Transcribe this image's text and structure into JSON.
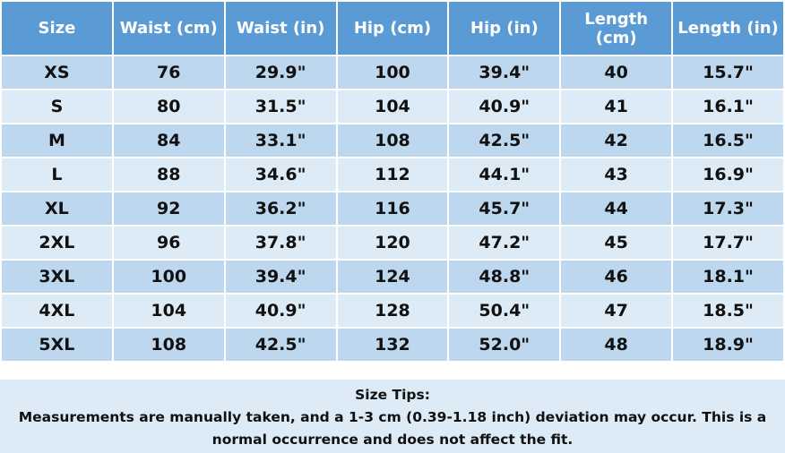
{
  "table": {
    "header": [
      "Size",
      "Waist (cm)",
      "Waist (in)",
      "Hip (cm)",
      "Hip (in)",
      "Length (cm)",
      "Length (in)"
    ],
    "rows": [
      [
        "XS",
        "76",
        "29.9\"",
        "100",
        "39.4\"",
        "40",
        "15.7\""
      ],
      [
        "S",
        "80",
        "31.5\"",
        "104",
        "40.9\"",
        "41",
        "16.1\""
      ],
      [
        "M",
        "84",
        "33.1\"",
        "108",
        "42.5\"",
        "42",
        "16.5\""
      ],
      [
        "L",
        "88",
        "34.6\"",
        "112",
        "44.1\"",
        "43",
        "16.9\""
      ],
      [
        "XL",
        "92",
        "36.2\"",
        "116",
        "45.7\"",
        "44",
        "17.3\""
      ],
      [
        "2XL",
        "96",
        "37.8\"",
        "120",
        "47.2\"",
        "45",
        "17.7\""
      ],
      [
        "3XL",
        "100",
        "39.4\"",
        "124",
        "48.8\"",
        "46",
        "18.1\""
      ],
      [
        "4XL",
        "104",
        "40.9\"",
        "128",
        "50.4\"",
        "47",
        "18.5\""
      ],
      [
        "5XL",
        "108",
        "42.5\"",
        "132",
        "52.0\"",
        "48",
        "18.9\""
      ]
    ]
  },
  "tips": {
    "title": "Size Tips:",
    "text": "Measurements are manually taken, and a 1-3 cm (0.39-1.18 inch) deviation may occur. This is a normal occurrence and does not affect the fit."
  }
}
